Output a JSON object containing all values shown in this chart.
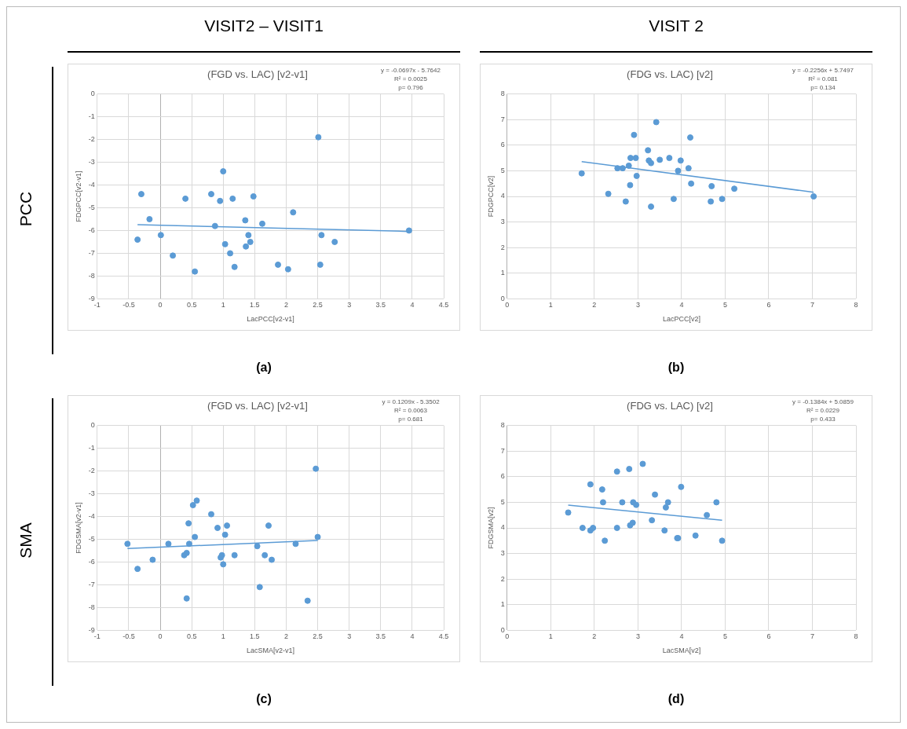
{
  "chart_data": [
    {
      "type": "scatter",
      "title": "(FGD vs. LAC) [v2-v1]",
      "xlabel": "LacPCC[v2-v1]",
      "ylabel": "FDGPCC[v2-v1]",
      "annotations": [
        "y = -0.0697x - 5.7642",
        "R² = 0.0025",
        "p= 0.796",
        "(a)",
        "VISIT2 – VISIT1",
        "PCC"
      ],
      "xlim": [
        -1,
        4.5
      ],
      "xticks": [
        -1,
        -0.5,
        0,
        0.5,
        1,
        1.5,
        2,
        2.5,
        3,
        3.5,
        4,
        4.5
      ],
      "ylim": [
        -9,
        0
      ],
      "yticks": [
        0,
        -1,
        -2,
        -3,
        -4,
        -5,
        -6,
        -7,
        -8,
        -9
      ],
      "grid": true,
      "legend": false,
      "series": [
        {
          "type": "scatter",
          "marker": "circle",
          "color": "#5b9bd5",
          "x": [
            -0.36,
            -0.3,
            -0.17,
            0.01,
            0.2,
            0.4,
            0.55,
            0.81,
            0.87,
            0.95,
            1.0,
            1.03,
            1.11,
            1.15,
            1.18,
            1.35,
            1.36,
            1.4,
            1.43,
            1.48,
            1.62,
            1.87,
            2.03,
            2.11,
            2.51,
            2.56,
            2.54,
            2.77,
            3.95
          ],
          "values": [
            -6.4,
            -4.4,
            -5.5,
            -6.2,
            -7.1,
            -4.6,
            -7.8,
            -4.4,
            -5.8,
            -4.7,
            -3.4,
            -6.6,
            -7.0,
            -4.6,
            -7.6,
            -5.55,
            -6.7,
            -6.2,
            -6.5,
            -4.5,
            -5.7,
            -7.5,
            -7.7,
            -5.2,
            -1.9,
            -6.2,
            -7.5,
            -6.5,
            -6.0
          ]
        },
        {
          "type": "line",
          "marker": "none",
          "color": "#5b9bd5",
          "x": [
            -0.36,
            3.95
          ],
          "values": [
            -5.74,
            -6.04
          ]
        }
      ]
    },
    {
      "type": "scatter",
      "title": "(FDG vs. LAC) [v2]",
      "xlabel": "LacPCC[v2]",
      "ylabel": "FDGPCC[v2]",
      "annotations": [
        "y = -0.2256x + 5.7497",
        "R² = 0.081",
        "p= 0.134",
        "(b)",
        "VISIT 2"
      ],
      "xlim": [
        0,
        8
      ],
      "xticks": [
        0,
        1,
        2,
        3,
        4,
        5,
        6,
        7,
        8
      ],
      "ylim": [
        0,
        8
      ],
      "yticks": [
        0,
        1,
        2,
        3,
        4,
        5,
        6,
        7,
        8
      ],
      "grid": true,
      "legend": false,
      "series": [
        {
          "type": "scatter",
          "marker": "circle",
          "color": "#5b9bd5",
          "x": [
            1.71,
            2.32,
            2.53,
            2.65,
            2.72,
            2.79,
            2.82,
            2.83,
            2.91,
            2.95,
            2.97,
            3.23,
            3.25,
            3.3,
            3.3,
            3.42,
            3.5,
            3.72,
            3.82,
            3.92,
            3.98,
            4.16,
            4.2,
            4.22,
            4.67,
            4.69,
            4.93,
            5.21,
            7.03
          ],
          "values": [
            4.9,
            4.1,
            5.1,
            5.1,
            3.8,
            5.2,
            4.44,
            5.5,
            6.4,
            5.5,
            4.8,
            5.8,
            5.4,
            5.3,
            3.6,
            6.9,
            5.43,
            5.5,
            3.9,
            5.0,
            5.4,
            5.1,
            6.3,
            4.5,
            3.8,
            4.4,
            3.9,
            4.3,
            4.0
          ]
        },
        {
          "type": "line",
          "marker": "none",
          "color": "#5b9bd5",
          "x": [
            1.71,
            7.03
          ],
          "values": [
            5.36,
            4.16
          ]
        }
      ]
    },
    {
      "type": "scatter",
      "title": "(FGD vs. LAC) [v2-v1]",
      "xlabel": "LacSMA[v2-v1]",
      "ylabel": "FDGSMA[v2-v1]",
      "annotations": [
        "y = 0.1209x - 5.3502",
        "R² = 0.0063",
        "p= 0.681",
        "(c)",
        "SMA"
      ],
      "xlim": [
        -1,
        4.5
      ],
      "xticks": [
        -1,
        -0.5,
        0,
        0.5,
        1,
        1.5,
        2,
        2.5,
        3,
        3.5,
        4,
        4.5
      ],
      "ylim": [
        -9,
        0
      ],
      "yticks": [
        0,
        -1,
        -2,
        -3,
        -4,
        -5,
        -6,
        -7,
        -8,
        -9
      ],
      "grid": true,
      "legend": false,
      "series": [
        {
          "type": "scatter",
          "marker": "circle",
          "color": "#5b9bd5",
          "x": [
            -0.52,
            -0.36,
            -0.12,
            0.13,
            0.38,
            0.42,
            0.42,
            0.45,
            0.46,
            0.52,
            0.55,
            0.58,
            0.81,
            0.91,
            0.96,
            0.98,
            1.0,
            1.03,
            1.06,
            1.18,
            1.54,
            1.58,
            1.66,
            1.72,
            1.77,
            2.15,
            2.34,
            2.47,
            2.5
          ],
          "values": [
            -5.2,
            -6.3,
            -5.9,
            -5.2,
            -5.7,
            -5.6,
            -7.6,
            -4.3,
            -5.2,
            -3.5,
            -4.9,
            -3.3,
            -3.9,
            -4.5,
            -5.8,
            -5.7,
            -6.1,
            -4.8,
            -4.4,
            -5.7,
            -5.3,
            -7.1,
            -5.7,
            -4.4,
            -5.9,
            -5.2,
            -7.7,
            -1.9,
            -4.9
          ]
        },
        {
          "type": "line",
          "marker": "none",
          "color": "#5b9bd5",
          "x": [
            -0.52,
            2.5
          ],
          "values": [
            -5.41,
            -5.05
          ]
        }
      ]
    },
    {
      "type": "scatter",
      "title": "(FDG vs. LAC) [v2]",
      "xlabel": "LacSMA[v2]",
      "ylabel": "FDGSMA[v2]",
      "annotations": [
        "y = -0.1384x + 5.0859",
        "R² = 0.0229",
        "p= 0.433",
        "(d)"
      ],
      "xlim": [
        0,
        8
      ],
      "xticks": [
        0,
        1,
        2,
        3,
        4,
        5,
        6,
        7,
        8
      ],
      "ylim": [
        0,
        8
      ],
      "yticks": [
        0,
        1,
        2,
        3,
        4,
        5,
        6,
        7,
        8
      ],
      "grid": true,
      "legend": false,
      "series": [
        {
          "type": "scatter",
          "marker": "circle",
          "color": "#5b9bd5",
          "x": [
            1.4,
            1.73,
            1.91,
            1.91,
            1.97,
            2.18,
            2.2,
            2.24,
            2.52,
            2.52,
            2.64,
            2.8,
            2.82,
            2.88,
            2.89,
            2.96,
            3.11,
            3.32,
            3.39,
            3.61,
            3.64,
            3.69,
            3.9,
            3.92,
            3.99,
            4.32,
            4.58,
            4.8,
            4.93
          ],
          "values": [
            4.6,
            4.0,
            3.9,
            5.7,
            4.0,
            5.5,
            5.0,
            3.5,
            6.2,
            4.0,
            5.0,
            6.3,
            4.1,
            4.2,
            5.0,
            4.9,
            6.5,
            4.3,
            5.3,
            3.9,
            4.8,
            5.0,
            3.6,
            3.6,
            5.6,
            3.7,
            4.5,
            5.0,
            3.5
          ]
        },
        {
          "type": "line",
          "marker": "none",
          "color": "#5b9bd5",
          "x": [
            1.4,
            4.93
          ],
          "values": [
            4.89,
            4.3
          ]
        }
      ]
    }
  ]
}
